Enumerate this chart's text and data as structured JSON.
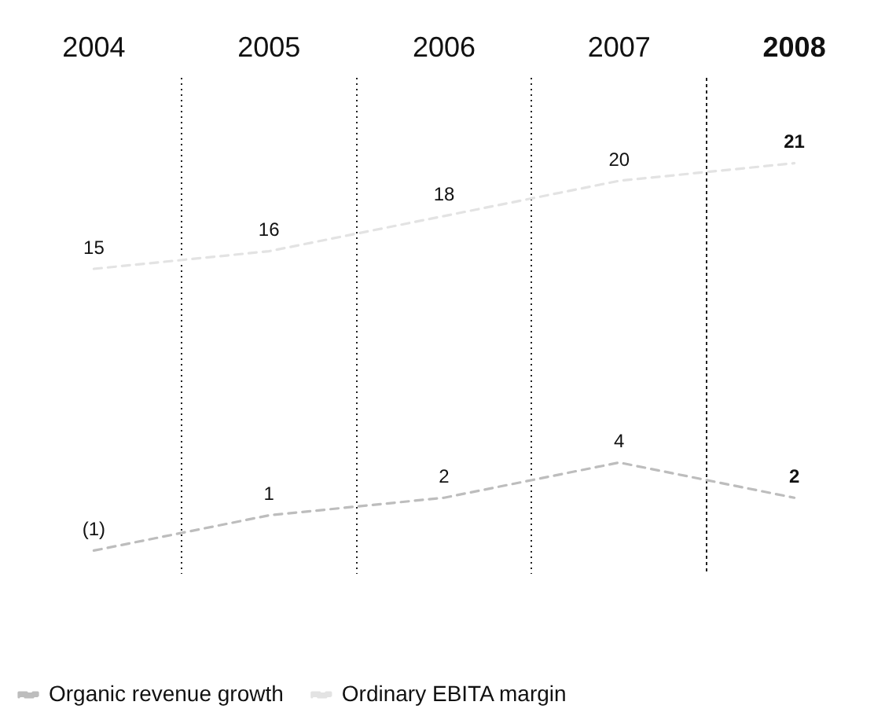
{
  "chart_data": {
    "type": "line",
    "categories": [
      "2004",
      "2005",
      "2006",
      "2007",
      "2008"
    ],
    "series": [
      {
        "name": "Organic revenue growth",
        "color": "#bdbdbd",
        "values": [
          -1,
          1,
          2,
          4,
          2
        ],
        "value_labels": [
          "(1)",
          "1",
          "2",
          "4",
          "2"
        ]
      },
      {
        "name": "Ordinary EBITA margin",
        "color": "#e3e3e3",
        "values": [
          15,
          16,
          18,
          20,
          21
        ],
        "value_labels": [
          "15",
          "16",
          "18",
          "20",
          "21"
        ]
      }
    ],
    "grid": "x",
    "legend": "bottom left",
    "marker": "none",
    "line_style": "dashed",
    "tick_labels": "x"
  }
}
